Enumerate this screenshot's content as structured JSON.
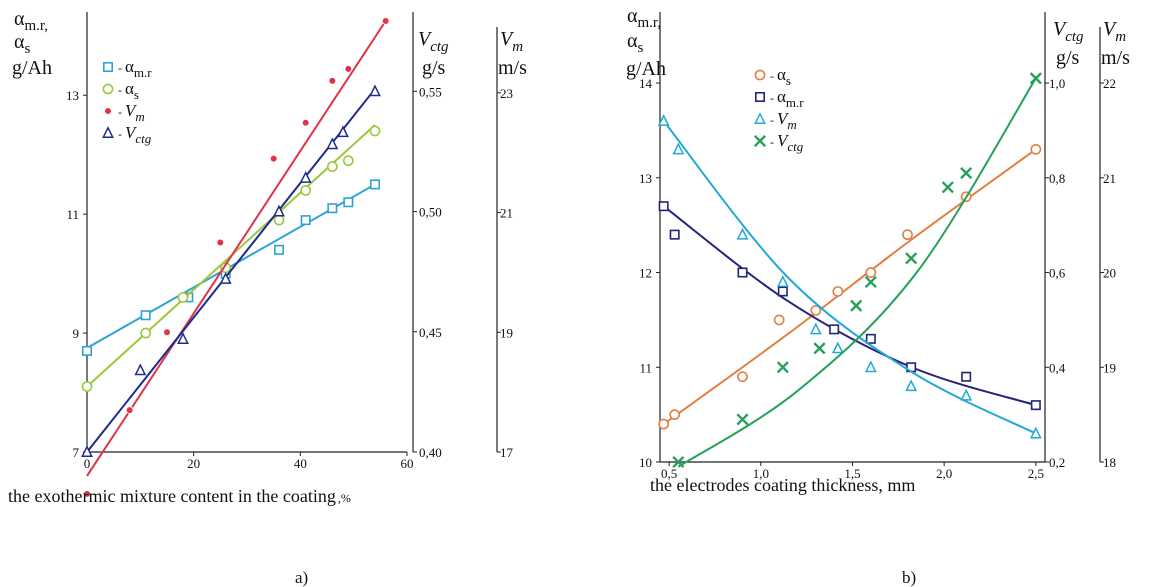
{
  "figure": {
    "panel_a_label": "a)",
    "panel_b_label": "b)"
  },
  "chart_data": [
    {
      "type": "line",
      "panel": "a)",
      "xlabel": "the exothermic mixture content in the coating",
      "xunit": ",%",
      "xlim": [
        0,
        60
      ],
      "xticks": [
        "0",
        "20",
        "40",
        "60"
      ],
      "axes": {
        "left": {
          "label_lines": [
            "α",
            "α",
            "g/Ah"
          ],
          "subs": [
            "m.r,",
            "s"
          ],
          "lim": [
            7,
            14.4
          ],
          "ticks": [
            "7",
            "9",
            "11",
            "13"
          ],
          "tick_values": [
            7,
            9,
            11,
            13
          ]
        },
        "right1": {
          "label": "V",
          "sub": "ctg",
          "unit": "g/s",
          "lim": [
            0.4,
            0.583
          ],
          "ticks": [
            "0,40",
            "0,45",
            "0,50",
            "0,55"
          ],
          "tick_values": [
            0.4,
            0.45,
            0.5,
            0.55
          ]
        },
        "right2": {
          "label": "V",
          "sub": "m",
          "unit": "m/s",
          "lim": [
            17,
            24.35
          ],
          "ticks": [
            "17",
            "19",
            "21",
            "23"
          ],
          "tick_values": [
            17,
            19,
            21,
            23
          ]
        }
      },
      "legend_position": "top-left",
      "series": [
        {
          "name": "α",
          "name_sub": "m.r",
          "axis": "left",
          "color": "#2ba3d6",
          "marker": "square",
          "x": [
            0,
            11,
            19,
            26,
            36,
            41,
            46,
            49,
            54
          ],
          "y": [
            8.7,
            9.3,
            9.6,
            10.0,
            10.4,
            10.9,
            11.1,
            11.2,
            11.5
          ],
          "fit": [
            8.75,
            11.5
          ]
        },
        {
          "name": "α",
          "name_sub": "s",
          "axis": "left",
          "color": "#9ac93a",
          "marker": "circle",
          "x": [
            0,
            11,
            18,
            26,
            36,
            41,
            46,
            49,
            54
          ],
          "y": [
            8.1,
            9.0,
            9.6,
            10.1,
            10.9,
            11.4,
            11.8,
            11.9,
            12.4
          ],
          "fit": [
            8.1,
            12.5
          ]
        },
        {
          "name": "V",
          "name_sub": "m",
          "axis": "right2",
          "color": "#e0324a",
          "marker": "dot",
          "x": [
            0,
            8,
            15,
            25,
            35,
            41,
            46,
            49,
            56
          ],
          "y": [
            16.3,
            17.7,
            19.0,
            20.5,
            21.9,
            22.5,
            23.2,
            23.4,
            24.2
          ],
          "fit": [
            16.6,
            24.2
          ]
        },
        {
          "name": "V",
          "name_sub": "ctg",
          "axis": "right1",
          "color": "#1e2a8c",
          "marker": "triangle",
          "x": [
            0,
            10,
            18,
            26,
            36,
            41,
            46,
            48,
            54
          ],
          "y": [
            0.4,
            0.434,
            0.447,
            0.472,
            0.5,
            0.514,
            0.528,
            0.533,
            0.55
          ],
          "fit": [
            0.4,
            0.551
          ]
        }
      ]
    },
    {
      "type": "line",
      "panel": "b)",
      "xlabel": "the electrodes coating thickness, mm",
      "xlim": [
        0.45,
        2.55
      ],
      "xticks": [
        "0,5",
        "1,0",
        "1,5",
        "2,0",
        "2,5"
      ],
      "xtick_values": [
        0.5,
        1.0,
        1.5,
        2.0,
        2.5
      ],
      "axes": {
        "left": {
          "label_lines": [
            "α",
            "α",
            "g/Ah"
          ],
          "subs": [
            "m.r,",
            "s"
          ],
          "lim": [
            10,
            14.75
          ],
          "ticks": [
            "10",
            "11",
            "12",
            "13",
            "14"
          ],
          "tick_values": [
            10,
            11,
            12,
            13,
            14
          ]
        },
        "right1": {
          "label": "V",
          "sub": "ctg",
          "unit": "g/s",
          "lim": [
            0.2,
            1.15
          ],
          "ticks": [
            "0,2",
            "0,4",
            "0,6",
            "0,8",
            "1,0"
          ],
          "tick_values": [
            0.2,
            0.4,
            0.6,
            0.8,
            1.0
          ]
        },
        "right2": {
          "label": "V",
          "sub": "m",
          "unit": "m/s",
          "lim": [
            18,
            22.75
          ],
          "ticks": [
            "18",
            "19",
            "20",
            "21",
            "22"
          ],
          "tick_values": [
            18,
            19,
            20,
            21,
            22
          ]
        }
      },
      "legend_position": "top-left",
      "series": [
        {
          "name": "α",
          "name_sub": "s",
          "axis": "left",
          "color": "#e08040",
          "marker": "circle",
          "x": [
            0.47,
            0.53,
            0.9,
            1.1,
            1.3,
            1.42,
            1.6,
            1.8,
            2.12,
            2.5
          ],
          "y": [
            10.4,
            10.5,
            10.9,
            11.5,
            11.6,
            11.8,
            12.0,
            12.4,
            12.8,
            13.3
          ],
          "fit": [
            10.4,
            11.35,
            12.35,
            13.3
          ]
        },
        {
          "name": "α",
          "name_sub": "m.r",
          "axis": "left",
          "color": "#22237a",
          "marker": "square",
          "x": [
            0.47,
            0.53,
            0.9,
            1.12,
            1.4,
            1.6,
            1.82,
            2.12,
            2.5
          ],
          "y": [
            12.7,
            12.4,
            12.0,
            11.8,
            11.4,
            11.3,
            11.0,
            10.9,
            10.6
          ],
          "fit": [
            12.7,
            11.7,
            11.0,
            10.6
          ]
        },
        {
          "name": "V",
          "name_sub": "m",
          "axis": "right2",
          "color": "#22a8d8",
          "marker": "triangle",
          "x": [
            0.47,
            0.55,
            0.9,
            1.12,
            1.3,
            1.42,
            1.6,
            1.82,
            2.12,
            2.5
          ],
          "y": [
            21.6,
            21.3,
            20.4,
            19.9,
            19.4,
            19.2,
            19.0,
            18.8,
            18.7,
            18.3
          ],
          "fit": [
            21.6,
            19.95,
            18.95,
            18.3
          ]
        },
        {
          "name": "V",
          "name_sub": "ctg",
          "axis": "right1",
          "color": "#27a05a",
          "marker": "x",
          "x": [
            0.55,
            0.9,
            1.12,
            1.32,
            1.52,
            1.6,
            1.82,
            2.02,
            2.12,
            2.5
          ],
          "y": [
            0.2,
            0.29,
            0.4,
            0.44,
            0.53,
            0.58,
            0.63,
            0.78,
            0.81,
            1.01
          ],
          "fit": [
            0.19,
            0.35,
            0.6,
            1.01
          ]
        }
      ]
    }
  ]
}
